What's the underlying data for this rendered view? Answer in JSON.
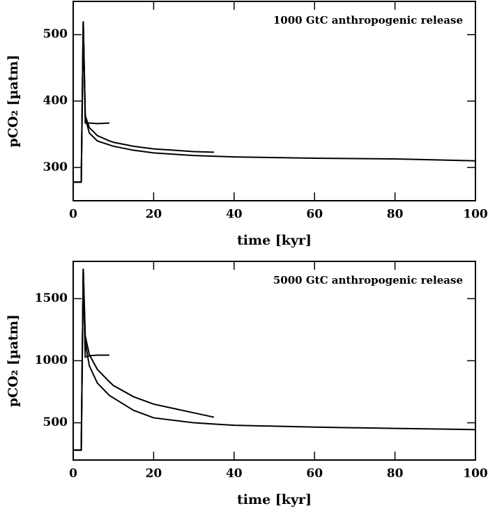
{
  "chart_data": [
    {
      "type": "line",
      "annotation": "1000 GtC anthropogenic release",
      "xlabel": "time [kyr]",
      "ylabel": "pCO₂ [µatm]",
      "x": [
        0,
        2,
        2.5,
        3,
        4,
        6,
        9,
        10,
        15,
        20,
        30,
        35,
        40,
        60,
        80,
        100
      ],
      "series": [
        {
          "color": "#000000",
          "values": [
            278,
            278,
            520,
            375,
            352,
            340,
            334,
            332,
            326,
            322,
            318,
            317,
            316,
            314,
            313,
            310
          ]
        },
        {
          "color": "#000000",
          "values": [
            278,
            278,
            520,
            378,
            360,
            348,
            340,
            338,
            332,
            328,
            324,
            323,
            null,
            null,
            null,
            null
          ]
        },
        {
          "color": "#000000",
          "values": [
            278,
            278,
            520,
            367,
            367,
            366,
            367,
            null,
            null,
            null,
            null,
            null,
            null,
            null,
            null,
            null
          ]
        }
      ],
      "xlim": [
        0,
        100
      ],
      "xticks": [
        0,
        20,
        40,
        60,
        80,
        100
      ],
      "ylim": [
        250,
        550
      ],
      "yticks": [
        300,
        400,
        500
      ]
    },
    {
      "type": "line",
      "annotation": "5000 GtC anthropogenic release",
      "xlabel": "time [kyr]",
      "ylabel": "pCO₂ [µatm]",
      "x": [
        0,
        2,
        2.5,
        3,
        4,
        6,
        9,
        10,
        15,
        20,
        30,
        35,
        40,
        60,
        80,
        100
      ],
      "series": [
        {
          "color": "#000000",
          "values": [
            280,
            280,
            1740,
            1150,
            960,
            820,
            720,
            700,
            600,
            540,
            500,
            490,
            480,
            465,
            455,
            445
          ]
        },
        {
          "color": "#000000",
          "values": [
            280,
            280,
            1740,
            1200,
            1050,
            930,
            830,
            800,
            710,
            650,
            580,
            545,
            null,
            null,
            null,
            null
          ]
        },
        {
          "color": "#000000",
          "values": [
            280,
            280,
            1740,
            1030,
            1040,
            1045,
            1045,
            null,
            null,
            null,
            null,
            null,
            null,
            null,
            null,
            null
          ]
        }
      ],
      "xlim": [
        0,
        100
      ],
      "xticks": [
        0,
        20,
        40,
        60,
        80,
        100
      ],
      "ylim": [
        200,
        1800
      ],
      "yticks": [
        500,
        1000,
        1500
      ]
    }
  ]
}
